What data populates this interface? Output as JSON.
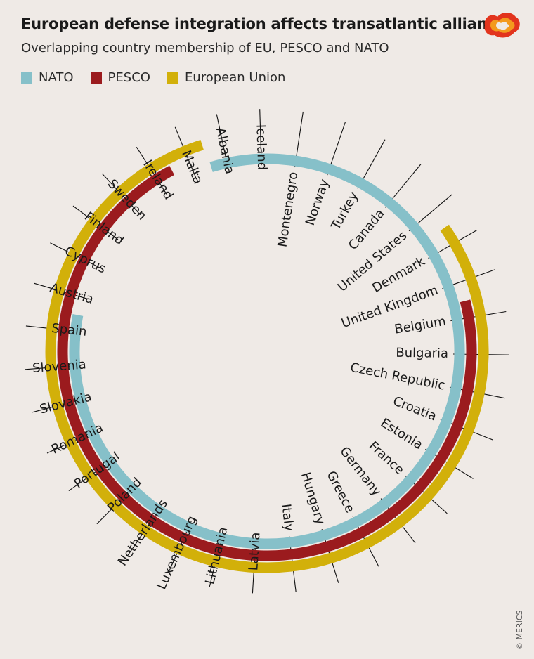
{
  "chart_data": {
    "type": "radial-membership",
    "title": "European defense integration affects transatlantic alliance",
    "subtitle": "Overlapping country membership of EU, PESCO and NATO",
    "series": [
      {
        "name": "NATO",
        "color": "#86c0c9"
      },
      {
        "name": "PESCO",
        "color": "#9b1b1e"
      },
      {
        "name": "European Union",
        "color": "#d2b00a"
      }
    ],
    "countries": [
      {
        "name": "Albania",
        "nato": true,
        "pesco": false,
        "eu": false
      },
      {
        "name": "Iceland",
        "nato": true,
        "pesco": false,
        "eu": false
      },
      {
        "name": "Montenegro",
        "nato": true,
        "pesco": false,
        "eu": false
      },
      {
        "name": "Norway",
        "nato": true,
        "pesco": false,
        "eu": false
      },
      {
        "name": "Turkey",
        "nato": true,
        "pesco": false,
        "eu": false
      },
      {
        "name": "Canada",
        "nato": true,
        "pesco": false,
        "eu": false
      },
      {
        "name": "United States",
        "nato": true,
        "pesco": false,
        "eu": false
      },
      {
        "name": "Denmark",
        "nato": true,
        "pesco": false,
        "eu": true
      },
      {
        "name": "United Kingdom",
        "nato": true,
        "pesco": false,
        "eu": true
      },
      {
        "name": "Belgium",
        "nato": true,
        "pesco": true,
        "eu": true
      },
      {
        "name": "Bulgaria",
        "nato": true,
        "pesco": true,
        "eu": true
      },
      {
        "name": "Czech Republic",
        "nato": true,
        "pesco": true,
        "eu": true
      },
      {
        "name": "Croatia",
        "nato": true,
        "pesco": true,
        "eu": true
      },
      {
        "name": "Estonia",
        "nato": true,
        "pesco": true,
        "eu": true
      },
      {
        "name": "France",
        "nato": true,
        "pesco": true,
        "eu": true
      },
      {
        "name": "Germany",
        "nato": true,
        "pesco": true,
        "eu": true
      },
      {
        "name": "Greece",
        "nato": true,
        "pesco": true,
        "eu": true
      },
      {
        "name": "Hungary",
        "nato": true,
        "pesco": true,
        "eu": true
      },
      {
        "name": "Italy",
        "nato": true,
        "pesco": true,
        "eu": true
      },
      {
        "name": "Latvia",
        "nato": true,
        "pesco": true,
        "eu": true
      },
      {
        "name": "Lithuania",
        "nato": true,
        "pesco": true,
        "eu": true
      },
      {
        "name": "Luxembourg",
        "nato": true,
        "pesco": true,
        "eu": true
      },
      {
        "name": "Netherlands",
        "nato": true,
        "pesco": true,
        "eu": true
      },
      {
        "name": "Poland",
        "nato": true,
        "pesco": true,
        "eu": true
      },
      {
        "name": "Portugal",
        "nato": true,
        "pesco": true,
        "eu": true
      },
      {
        "name": "Romania",
        "nato": true,
        "pesco": true,
        "eu": true
      },
      {
        "name": "Slovakia",
        "nato": true,
        "pesco": true,
        "eu": true
      },
      {
        "name": "Slovenia",
        "nato": true,
        "pesco": true,
        "eu": true
      },
      {
        "name": "Spain",
        "nato": true,
        "pesco": true,
        "eu": true
      },
      {
        "name": "Austria",
        "nato": false,
        "pesco": true,
        "eu": true
      },
      {
        "name": "Cyprus",
        "nato": false,
        "pesco": true,
        "eu": true
      },
      {
        "name": "Finland",
        "nato": false,
        "pesco": true,
        "eu": true
      },
      {
        "name": "Sweden",
        "nato": false,
        "pesco": true,
        "eu": true
      },
      {
        "name": "Ireland",
        "nato": false,
        "pesco": true,
        "eu": true
      },
      {
        "name": "Malta",
        "nato": false,
        "pesco": false,
        "eu": true
      }
    ]
  },
  "credit": "© MERICS",
  "logo_icon": "merics-logo-icon"
}
